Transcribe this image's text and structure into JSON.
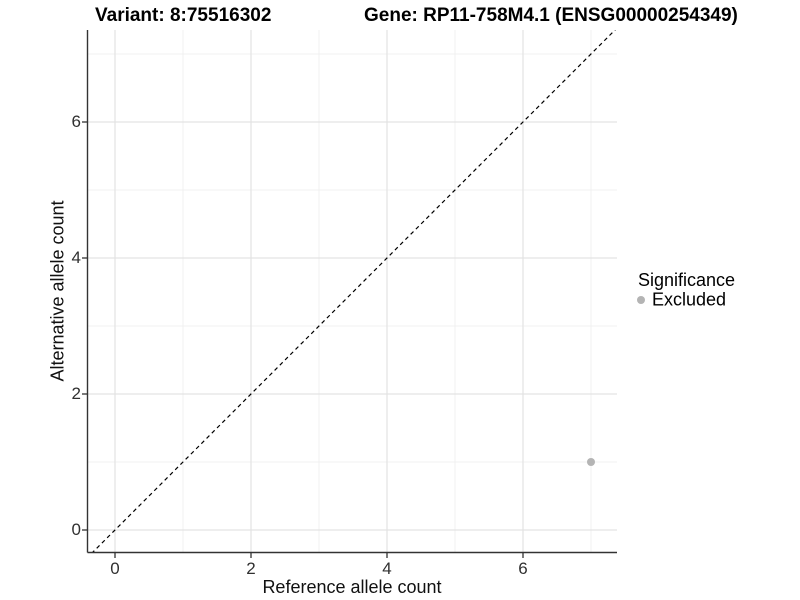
{
  "header": {
    "variant_title": "Variant: 8:75516302",
    "gene_title": "Gene: RP11-758M4.1 (ENSG00000254349)"
  },
  "axes": {
    "x": {
      "label": "Reference allele count",
      "tick_labels": [
        "0",
        "2",
        "4",
        "6"
      ]
    },
    "y": {
      "label": "Alternative allele count",
      "tick_labels": [
        "0",
        "2",
        "4",
        "6"
      ]
    }
  },
  "legend": {
    "title": "Significance",
    "items": [
      {
        "label": "Excluded",
        "color": "#b4b4b4"
      }
    ]
  },
  "chart_data": {
    "type": "scatter",
    "title": "Variant: 8:75516302 / Gene: RP11-758M4.1 (ENSG00000254349)",
    "xlabel": "Reference allele count",
    "ylabel": "Alternative allele count",
    "xlim": [
      -0.4,
      7.4
    ],
    "ylim": [
      -0.35,
      7.35
    ],
    "x_major_ticks": [
      0,
      2,
      4,
      6
    ],
    "y_major_ticks": [
      0,
      2,
      4,
      6
    ],
    "x_minor_ticks": [
      1,
      3,
      5,
      7
    ],
    "y_minor_ticks": [
      1,
      3,
      5,
      7
    ],
    "grid": "major+minor",
    "legend_position": "right",
    "series": [
      {
        "name": "Excluded",
        "color": "#b4b4b4",
        "points": [
          {
            "x": 7,
            "y": 1
          }
        ]
      }
    ],
    "reference_line": {
      "type": "identity y=x",
      "style": "dashed",
      "color": "#000000"
    }
  },
  "colors": {
    "background": "#ffffff",
    "grid_major": "#e3e3e3",
    "grid_minor": "#f1f1f1",
    "axis_line": "#333333",
    "tick_mark": "#333333",
    "point": "#b4b4b4"
  }
}
